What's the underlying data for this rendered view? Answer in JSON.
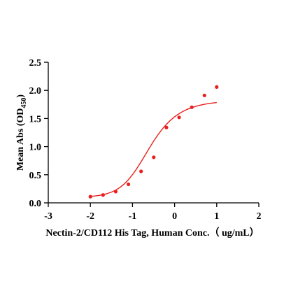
{
  "chart_data": {
    "type": "scatter",
    "title": "",
    "xlabel": "Nectin-2/CD112 His Tag, Human Conc.（ ug/mL）",
    "ylabel_main": "Mean Abs (OD",
    "ylabel_sub": "450",
    "ylabel_close": ")",
    "xlim": [
      -3,
      2
    ],
    "ylim": [
      0,
      2.5
    ],
    "xticks": [
      -3,
      -2,
      -1,
      0,
      1,
      2
    ],
    "xtick_labels": [
      "-3",
      "-2",
      "-1",
      "0",
      "1",
      "2"
    ],
    "yticks": [
      0,
      0.5,
      1,
      1.5,
      2,
      2.5
    ],
    "ytick_labels": [
      "0.0",
      "0.5",
      "1.0",
      "1.5",
      "2.0",
      "2.5"
    ],
    "grid": false,
    "series": [
      {
        "color": "#e8201e",
        "x": [
          -2.0,
          -1.699,
          -1.398,
          -1.097,
          -0.796,
          -0.495,
          -0.194,
          0.107,
          0.408,
          0.709,
          1.0
        ],
        "y": [
          0.11,
          0.14,
          0.2,
          0.33,
          0.56,
          0.81,
          1.34,
          1.52,
          1.7,
          1.91,
          2.06
        ]
      }
    ],
    "fit": {
      "color": "#e8201e",
      "x": [
        -2.0,
        -1.9,
        -1.8,
        -1.7,
        -1.6,
        -1.5,
        -1.4,
        -1.3,
        -1.2,
        -1.1,
        -1.0,
        -0.9,
        -0.8,
        -0.7,
        -0.6,
        -0.5,
        -0.4,
        -0.3,
        -0.2,
        -0.1,
        0.0,
        0.1,
        0.2,
        0.3,
        0.4,
        0.5,
        0.6,
        0.7,
        0.8,
        0.9,
        1.0
      ],
      "y": [
        0.115,
        0.122,
        0.132,
        0.146,
        0.165,
        0.191,
        0.226,
        0.273,
        0.333,
        0.409,
        0.501,
        0.607,
        0.725,
        0.849,
        0.974,
        1.094,
        1.205,
        1.305,
        1.392,
        1.467,
        1.53,
        1.583,
        1.627,
        1.663,
        1.692,
        1.716,
        1.736,
        1.752,
        1.765,
        1.775,
        1.784
      ]
    }
  }
}
